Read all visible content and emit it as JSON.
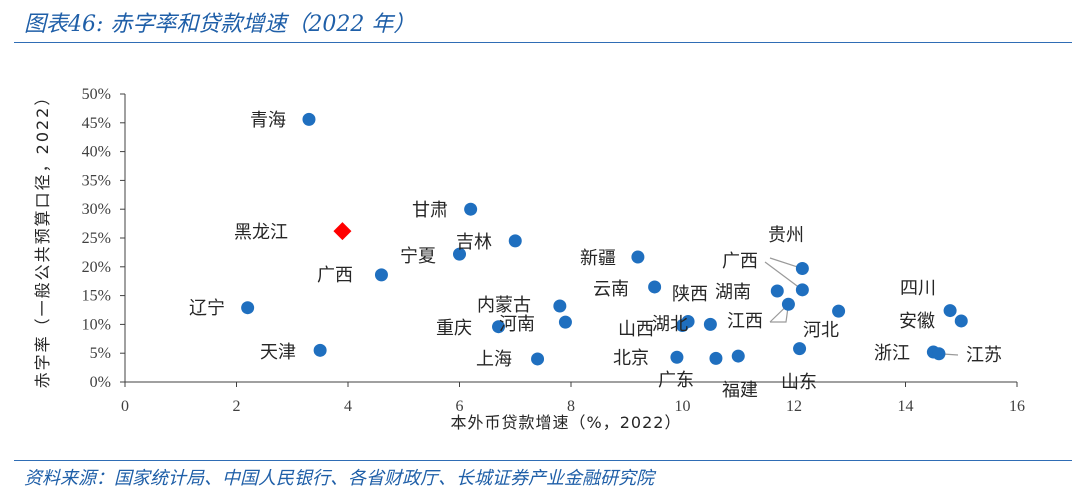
{
  "header": {
    "title": "图表46:  赤字率和贷款增速（2022 年）"
  },
  "footer": {
    "source": "资料来源：国家统计局、中国人民银行、各省财政厅、长城证券产业金融研究院"
  },
  "colors": {
    "point": "#1f6fbf",
    "highlight": "#ff0000",
    "title": "#1f5fa8",
    "axis": "#404040"
  },
  "chart_data": {
    "type": "scatter",
    "title": "赤字率和贷款增速（2022 年）",
    "xlabel": "本外币贷款增速（%，2022）",
    "ylabel": "赤字率（一般公共预算口径，2022）",
    "xlim": [
      0,
      16
    ],
    "ylim": [
      0,
      50
    ],
    "xticks": [
      0,
      2,
      4,
      6,
      8,
      10,
      12,
      14,
      16
    ],
    "yticks": [
      0,
      5,
      10,
      15,
      20,
      25,
      30,
      35,
      40,
      45,
      50
    ],
    "ytick_suffix": "%",
    "highlight_marker": "diamond",
    "grid": false,
    "points": [
      {
        "name": "青海",
        "x": 3.3,
        "y": 45.6
      },
      {
        "name": "甘肃",
        "x": 6.2,
        "y": 30.0
      },
      {
        "name": "黑龙江",
        "x": 3.9,
        "y": 26.2,
        "highlight": true
      },
      {
        "name": "吉林",
        "x": 7.0,
        "y": 24.5
      },
      {
        "name": "宁夏",
        "x": 6.0,
        "y": 22.2
      },
      {
        "name": "广西",
        "x": 4.6,
        "y": 18.6
      },
      {
        "name": "辽宁",
        "x": 2.2,
        "y": 12.9
      },
      {
        "name": "天津",
        "x": 3.5,
        "y": 5.5
      },
      {
        "name": "新疆",
        "x": 9.2,
        "y": 21.7
      },
      {
        "name": "云南",
        "x": 9.5,
        "y": 16.5
      },
      {
        "name": "内蒙古",
        "x": 7.8,
        "y": 13.2
      },
      {
        "name": "河南",
        "x": 7.9,
        "y": 10.4
      },
      {
        "name": "重庆",
        "x": 6.7,
        "y": 9.6
      },
      {
        "name": "上海",
        "x": 7.4,
        "y": 4.0
      },
      {
        "name": "陕西",
        "x": 10.1,
        "y": 10.5
      },
      {
        "name": "湖北",
        "x": 10.5,
        "y": 10.0
      },
      {
        "name": "山西",
        "x": 10.0,
        "y": 9.8
      },
      {
        "name": "北京",
        "x": 9.9,
        "y": 4.3
      },
      {
        "name": "广东",
        "x": 10.6,
        "y": 4.1
      },
      {
        "name": "福建",
        "x": 11.0,
        "y": 4.5
      },
      {
        "name": "山东",
        "x": 12.1,
        "y": 5.8
      },
      {
        "name": "湖南",
        "x": 11.7,
        "y": 15.8
      },
      {
        "name": "江西",
        "x": 11.9,
        "y": 13.5
      },
      {
        "name": "广西",
        "x": 12.15,
        "y": 16.0
      },
      {
        "name": "贵州",
        "x": 12.15,
        "y": 19.7
      },
      {
        "name": "河北",
        "x": 12.8,
        "y": 12.3
      },
      {
        "name": "四川",
        "x": 14.8,
        "y": 12.4
      },
      {
        "name": "安徽",
        "x": 15.0,
        "y": 10.6
      },
      {
        "name": "浙江",
        "x": 14.5,
        "y": 5.2
      },
      {
        "name": "江苏",
        "x": 14.6,
        "y": 4.9
      }
    ]
  }
}
